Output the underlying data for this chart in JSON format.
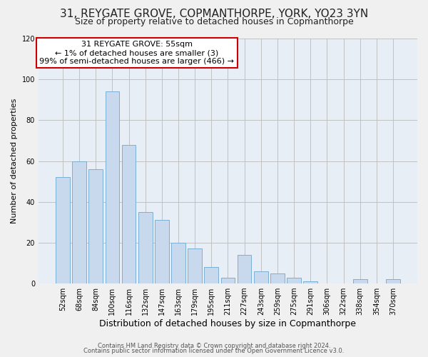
{
  "title": "31, REYGATE GROVE, COPMANTHORPE, YORK, YO23 3YN",
  "subtitle": "Size of property relative to detached houses in Copmanthorpe",
  "xlabel": "Distribution of detached houses by size in Copmanthorpe",
  "ylabel": "Number of detached properties",
  "bar_color": "#c8d9ee",
  "bar_edge_color": "#7aafd4",
  "annotation_box_edge": "#cc0000",
  "annotation_line1": "31 REYGATE GROVE: 55sqm",
  "annotation_line2": "← 1% of detached houses are smaller (3)",
  "annotation_line3": "99% of semi-detached houses are larger (466) →",
  "categories": [
    "52sqm",
    "68sqm",
    "84sqm",
    "100sqm",
    "116sqm",
    "132sqm",
    "147sqm",
    "163sqm",
    "179sqm",
    "195sqm",
    "211sqm",
    "227sqm",
    "243sqm",
    "259sqm",
    "275sqm",
    "291sqm",
    "306sqm",
    "322sqm",
    "338sqm",
    "354sqm",
    "370sqm"
  ],
  "values": [
    52,
    60,
    56,
    94,
    68,
    35,
    31,
    20,
    17,
    8,
    3,
    14,
    6,
    5,
    3,
    1,
    0,
    0,
    2,
    0,
    2
  ],
  "ylim": [
    0,
    120
  ],
  "yticks": [
    0,
    20,
    40,
    60,
    80,
    100,
    120
  ],
  "footer1": "Contains HM Land Registry data © Crown copyright and database right 2024.",
  "footer2": "Contains public sector information licensed under the Open Government Licence v3.0.",
  "background_color": "#f0f0f0",
  "plot_bg_color": "#e8eef5",
  "title_fontsize": 11,
  "subtitle_fontsize": 9,
  "xlabel_fontsize": 9,
  "ylabel_fontsize": 8,
  "tick_fontsize": 7,
  "annotation_fontsize": 8,
  "footer_fontsize": 6
}
